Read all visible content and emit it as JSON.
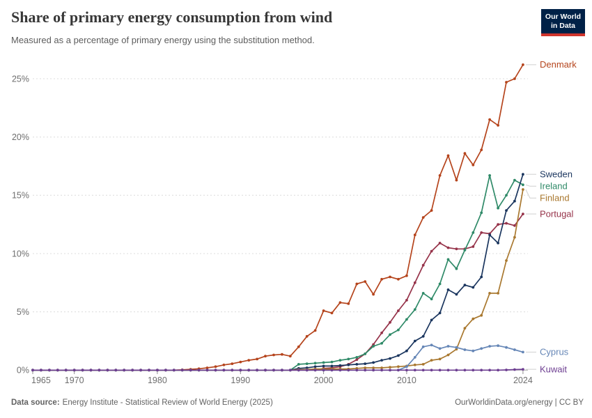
{
  "header": {
    "title": "Share of primary energy consumption from wind",
    "subtitle": "Measured as a percentage of primary energy using the substitution method.",
    "logo": {
      "line1": "Our World",
      "line2": "in Data",
      "bg": "#002147",
      "accent": "#d0342c"
    }
  },
  "footer": {
    "datasource_label": "Data source:",
    "datasource": "Energy Institute - Statistical Review of World Energy (2025)",
    "credit": "OurWorldinData.org/energy | CC BY"
  },
  "chart_data": {
    "type": "line",
    "title": "Share of primary energy consumption from wind",
    "xlabel": "",
    "ylabel": "",
    "grid": "horizontal-dashed",
    "legend_position": "right-of-line-endpoints",
    "x_range": [
      1965,
      2024
    ],
    "ylim": [
      0,
      26.5
    ],
    "y_ticks": [
      0,
      5,
      10,
      15,
      20,
      25
    ],
    "y_tick_suffix": "%",
    "x_ticks": [
      1965,
      1970,
      1980,
      1990,
      2000,
      2010,
      2024
    ],
    "x": [
      1965,
      1966,
      1967,
      1968,
      1969,
      1970,
      1971,
      1972,
      1973,
      1974,
      1975,
      1976,
      1977,
      1978,
      1979,
      1980,
      1981,
      1982,
      1983,
      1984,
      1985,
      1986,
      1987,
      1988,
      1989,
      1990,
      1991,
      1992,
      1993,
      1994,
      1995,
      1996,
      1997,
      1998,
      1999,
      2000,
      2001,
      2002,
      2003,
      2004,
      2005,
      2006,
      2007,
      2008,
      2009,
      2010,
      2011,
      2012,
      2013,
      2014,
      2015,
      2016,
      2017,
      2018,
      2019,
      2020,
      2021,
      2022,
      2023,
      2024
    ],
    "series": [
      {
        "name": "Denmark",
        "color": "#b5441c",
        "values": [
          0,
          0,
          0,
          0,
          0,
          0,
          0,
          0,
          0,
          0,
          0,
          0,
          0,
          0,
          0,
          0,
          0,
          0,
          0.03,
          0.07,
          0.12,
          0.2,
          0.3,
          0.45,
          0.55,
          0.7,
          0.85,
          0.95,
          1.2,
          1.3,
          1.35,
          1.2,
          2,
          2.9,
          3.4,
          5.1,
          4.9,
          5.8,
          5.7,
          7.4,
          7.6,
          6.5,
          7.8,
          8,
          7.8,
          8.1,
          11.6,
          13.1,
          13.7,
          16.7,
          18.4,
          16.3,
          18.6,
          17.6,
          18.9,
          21.5,
          21,
          24.7,
          25,
          26.2
        ]
      },
      {
        "name": "Portugal",
        "color": "#96334a",
        "values": [
          0,
          0,
          0,
          0,
          0,
          0,
          0,
          0,
          0,
          0,
          0,
          0,
          0,
          0,
          0,
          0,
          0,
          0,
          0,
          0,
          0,
          0,
          0,
          0,
          0,
          0,
          0,
          0,
          0,
          0,
          0,
          0,
          0,
          0,
          0,
          0.15,
          0.2,
          0.3,
          0.5,
          0.9,
          1.4,
          2.2,
          3.2,
          4.1,
          5.1,
          6,
          7.5,
          9,
          10.2,
          10.9,
          10.5,
          10.4,
          10.4,
          10.6,
          11.8,
          11.7,
          12.5,
          12.6,
          12.4,
          13.4
        ]
      },
      {
        "name": "Ireland",
        "color": "#2f8a68",
        "values": [
          0,
          0,
          0,
          0,
          0,
          0,
          0,
          0,
          0,
          0,
          0,
          0,
          0,
          0,
          0,
          0,
          0,
          0,
          0,
          0,
          0,
          0,
          0,
          0,
          0,
          0,
          0,
          0,
          0,
          0,
          0,
          0,
          0.5,
          0.55,
          0.6,
          0.65,
          0.7,
          0.85,
          0.95,
          1.1,
          1.4,
          2.05,
          2.3,
          3.05,
          3.45,
          4.35,
          5.2,
          6.6,
          6.1,
          7.4,
          9.5,
          8.7,
          10.3,
          11.8,
          13.5,
          16.7,
          13.9,
          15,
          16.3,
          15.9
        ]
      },
      {
        "name": "Sweden",
        "color": "#1a355e",
        "values": [
          0,
          0,
          0,
          0,
          0,
          0,
          0,
          0,
          0,
          0,
          0,
          0,
          0,
          0,
          0,
          0,
          0,
          0,
          0,
          0,
          0,
          0,
          0,
          0,
          0,
          0,
          0,
          0,
          0,
          0,
          0,
          0,
          0.15,
          0.2,
          0.3,
          0.35,
          0.35,
          0.4,
          0.45,
          0.5,
          0.55,
          0.65,
          0.85,
          1,
          1.25,
          1.65,
          2.5,
          2.9,
          4.3,
          4.9,
          6.9,
          6.5,
          7.3,
          7.1,
          8,
          11.6,
          10.9,
          13.7,
          14.5,
          16.8
        ]
      },
      {
        "name": "Finland",
        "color": "#a9782f",
        "values": [
          0,
          0,
          0,
          0,
          0,
          0,
          0,
          0,
          0,
          0,
          0,
          0,
          0,
          0,
          0,
          0,
          0,
          0,
          0,
          0,
          0,
          0,
          0,
          0,
          0,
          0,
          0,
          0,
          0,
          0,
          0,
          0,
          0.05,
          0.05,
          0.1,
          0.1,
          0.1,
          0.1,
          0.1,
          0.15,
          0.2,
          0.2,
          0.2,
          0.25,
          0.3,
          0.35,
          0.45,
          0.5,
          0.85,
          0.95,
          1.3,
          1.8,
          3.6,
          4.4,
          4.7,
          6.6,
          6.6,
          9.4,
          11.4,
          15.5
        ]
      },
      {
        "name": "Cyprus",
        "color": "#6586b6",
        "values": [
          0,
          0,
          0,
          0,
          0,
          0,
          0,
          0,
          0,
          0,
          0,
          0,
          0,
          0,
          0,
          0,
          0,
          0,
          0,
          0,
          0,
          0,
          0,
          0,
          0,
          0,
          0,
          0,
          0,
          0,
          0,
          0,
          0,
          0,
          0,
          0,
          0,
          0,
          0,
          0,
          0,
          0,
          0,
          0,
          0,
          0.3,
          1.1,
          2,
          2.15,
          1.85,
          2.05,
          1.95,
          1.75,
          1.65,
          1.85,
          2.05,
          2.1,
          1.95,
          1.75,
          1.55
        ]
      },
      {
        "name": "Kuwait",
        "color": "#6d3e91",
        "values": [
          0,
          0,
          0,
          0,
          0,
          0,
          0,
          0,
          0,
          0,
          0,
          0,
          0,
          0,
          0,
          0,
          0,
          0,
          0,
          0,
          0,
          0,
          0,
          0,
          0,
          0,
          0,
          0,
          0,
          0,
          0,
          0,
          0,
          0,
          0,
          0,
          0,
          0,
          0,
          0,
          0,
          0,
          0,
          0,
          0,
          0,
          0,
          0,
          0,
          0,
          0,
          0,
          0,
          0,
          0,
          0,
          0,
          0.02,
          0.05,
          0.07
        ]
      }
    ]
  }
}
